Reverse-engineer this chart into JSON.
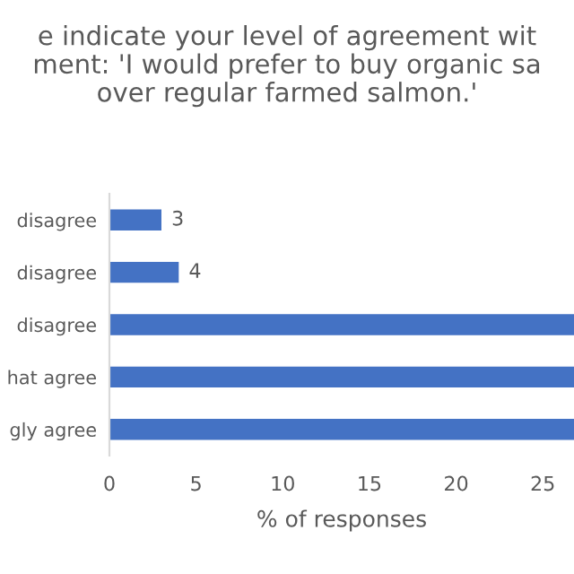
{
  "chart_data": {
    "type": "bar",
    "orientation": "horizontal",
    "title": "e indicate your level of agreement wit\nment: 'I would prefer to buy organic sa\nover regular farmed salmon.'",
    "xlabel": "% of responses",
    "categories": [
      "disagree",
      "disagree",
      "disagree",
      "hat agree",
      "gly agree"
    ],
    "values": [
      3,
      4,
      26.8,
      26.8,
      26.8
    ],
    "value_labels": [
      "3",
      "4",
      null,
      null,
      null
    ],
    "color": "#4472c4",
    "xlim": [
      0,
      26.8
    ],
    "xticks": [
      0,
      5,
      10,
      15,
      20,
      25
    ],
    "grid": false,
    "legend": false
  }
}
